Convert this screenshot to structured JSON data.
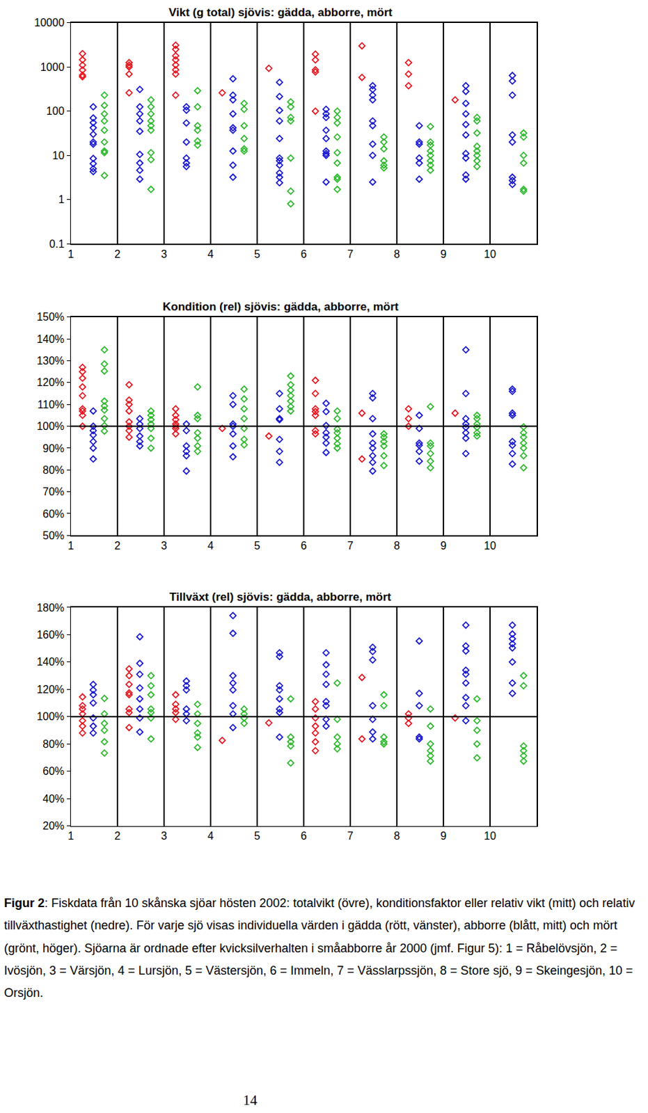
{
  "chart_data": [
    {
      "type": "scatter",
      "title": "Vikt (g total) sjövis: gädda, abborre, mört",
      "log": "y",
      "grid": "x",
      "x": [
        1,
        2,
        3,
        4,
        5,
        6,
        7,
        8,
        9,
        10
      ],
      "xlim": [
        1,
        11
      ],
      "xticks": [
        1,
        2,
        3,
        4,
        5,
        6,
        7,
        8,
        9,
        10
      ],
      "ylim": [
        0.1,
        10000
      ],
      "yticks": [
        0.1,
        1,
        10,
        100,
        1000,
        10000
      ],
      "series": [
        {
          "name": "gädda",
          "color": "#e8141e",
          "marker": "diamond-open",
          "values": [
            [
              2000,
              1450,
              1100,
              850,
              650,
              600
            ],
            [
              1250,
              1100,
              1000,
              690,
              260
            ],
            [
              3100,
              2500,
              1780,
              1440,
              1110,
              860,
              690,
              230
            ],
            [
              260
            ],
            [
              930
            ],
            [
              1950,
              1440,
              860,
              770,
              100
            ],
            [
              3000,
              580
            ],
            [
              1250,
              690,
              375
            ],
            [
              180
            ],
            []
          ]
        },
        {
          "name": "abborre",
          "color": "#1414d2",
          "marker": "diamond-open",
          "values": [
            [
              125,
              70,
              55,
              42,
              30,
              20,
              18,
              8.5,
              6.5,
              5,
              4.3
            ],
            [
              310,
              125,
              87,
              60,
              35,
              10.5,
              6.7,
              4.6,
              2.9
            ],
            [
              125,
              105,
              54,
              20,
              8.7,
              6.7,
              5.6
            ],
            [
              540,
              230,
              180,
              87,
              42,
              37,
              12.5,
              6,
              3.2
            ],
            [
              450,
              215,
              104,
              60,
              24,
              8.7,
              7.5,
              6,
              4,
              3.2,
              2.4
            ],
            [
              110,
              87,
              72,
              37,
              24,
              12.5,
              11,
              10,
              2.5
            ],
            [
              375,
              310,
              230,
              180,
              60,
              47,
              18,
              10,
              2.5
            ],
            [
              47,
              20,
              18,
              8.7,
              6.7,
              2.9
            ],
            [
              375,
              280,
              150,
              87,
              50,
              29,
              11,
              8.7,
              3.6,
              2.9
            ],
            [
              640,
              480,
              230,
              29,
              20,
              3.2,
              2.7,
              2.2
            ]
          ]
        },
        {
          "name": "mört",
          "color": "#2db82d",
          "marker": "diamond-open",
          "values": [
            [
              230,
              135,
              87,
              60,
              37,
              20,
              12.5,
              11.5,
              3.5
            ],
            [
              180,
              125,
              87,
              60,
              47,
              37,
              11.5,
              8,
              1.7
            ],
            [
              290,
              125,
              47,
              37,
              21,
              17
            ],
            [
              150,
              110,
              47,
              24,
              14,
              12.5
            ],
            [
              162,
              125,
              72,
              60,
              8.7,
              1.55,
              0.8
            ],
            [
              100,
              72,
              54,
              26,
              11.5,
              6.7,
              3.2,
              2.9,
              1.7
            ],
            [
              26,
              20,
              14,
              7.5,
              6,
              5.2
            ],
            [
              45,
              20,
              17,
              12.5,
              10,
              7.5,
              6,
              4.6
            ],
            [
              72,
              60,
              32,
              16,
              12.5,
              10,
              7.5,
              5.6
            ],
            [
              32,
              26,
              10,
              6.7,
              1.7,
              1.55
            ]
          ]
        }
      ]
    },
    {
      "type": "scatter",
      "title": "Kondition (rel) sjövis: gädda, abborre, mört",
      "grid": "x",
      "hline": 100,
      "x": [
        1,
        2,
        3,
        4,
        5,
        6,
        7,
        8,
        9,
        10
      ],
      "xlim": [
        1,
        11
      ],
      "xticks": [
        1,
        2,
        3,
        4,
        5,
        6,
        7,
        8,
        9,
        10
      ],
      "ylim": [
        50,
        150
      ],
      "yticks": [
        {
          "value": 50,
          "label": "50%"
        },
        {
          "value": 60,
          "label": "60%"
        },
        {
          "value": 70,
          "label": "70%"
        },
        {
          "value": 80,
          "label": "80%"
        },
        {
          "value": 90,
          "label": "90%"
        },
        {
          "value": 100,
          "label": "100%"
        },
        {
          "value": 110,
          "label": "110%"
        },
        {
          "value": 120,
          "label": "120%"
        },
        {
          "value": 130,
          "label": "130%"
        },
        {
          "value": 140,
          "label": "140%"
        },
        {
          "value": 150,
          "label": "150%"
        }
      ],
      "series": [
        {
          "name": "gädda",
          "color": "#e8141e",
          "marker": "diamond-open",
          "values": [
            [
              127,
              125,
              122,
              118,
              114,
              108,
              107,
              105,
              100
            ],
            [
              119,
              112,
              110,
              107,
              102,
              100,
              98,
              95
            ],
            [
              108,
              105,
              103,
              101,
              100,
              99,
              96.5
            ],
            [
              99
            ],
            [
              95.5
            ],
            [
              121,
              115,
              108,
              106.7,
              105,
              98,
              96.5
            ],
            [
              106,
              85
            ],
            [
              108,
              103.5,
              100
            ],
            [
              106
            ],
            []
          ]
        },
        {
          "name": "abborre",
          "color": "#1414d2",
          "marker": "diamond-open",
          "values": [
            [
              107,
              100,
              98,
              96,
              93,
              90,
              85
            ],
            [
              103.5,
              101,
              99,
              95.5,
              93,
              91
            ],
            [
              101,
              98,
              91,
              88.5,
              86.5,
              79.5
            ],
            [
              114,
              110,
              101,
              100,
              96.5,
              91,
              86
            ],
            [
              115,
              108,
              103.5,
              103,
              94,
              88.5,
              83.5
            ],
            [
              110.5,
              106.7,
              100.3,
              97,
              95,
              92.3,
              88
            ],
            [
              115,
              113,
              103.5,
              96.5,
              92.3,
              90,
              86.5,
              83.5,
              79.5
            ],
            [
              105,
              99,
              92.3,
              91.3,
              88.5,
              84
            ],
            [
              135,
              115,
              103.5,
              101,
              99.5,
              97,
              94.5,
              87.5
            ],
            [
              117,
              116,
              106,
              105,
              93,
              91.3,
              87.5,
              82.7
            ]
          ]
        },
        {
          "name": "mört",
          "color": "#2db82d",
          "marker": "diamond-open",
          "values": [
            [
              135,
              128.5,
              125.3,
              111.5,
              109.3,
              107.4,
              103.5,
              100.3,
              97.8
            ],
            [
              107,
              105,
              103,
              101,
              99,
              94.5,
              90
            ],
            [
              118,
              105,
              103.5,
              97,
              94.5,
              91,
              88.5
            ],
            [
              117,
              112.5,
              108,
              103.5,
              99,
              94,
              91.5
            ],
            [
              123,
              119,
              116.5,
              114,
              111.5,
              109,
              107
            ],
            [
              107,
              103.5,
              98.7,
              97,
              94.5,
              92,
              90
            ],
            [
              96.5,
              95,
              93,
              91,
              86.5,
              82
            ],
            [
              109,
              92.3,
              91,
              87.5,
              84,
              81
            ],
            [
              105,
              103.5,
              101,
              99.5,
              97,
              95.5
            ],
            [
              99.7,
              97,
              95,
              92.3,
              90,
              86.5,
              81
            ]
          ]
        }
      ]
    },
    {
      "type": "scatter",
      "title": "Tillväxt (rel) sjövis: gädda, abborre, mört",
      "grid": "x",
      "hline": 100,
      "x": [
        1,
        2,
        3,
        4,
        5,
        6,
        7,
        8,
        9,
        10
      ],
      "xlim": [
        1,
        11
      ],
      "xticks": [
        1,
        2,
        3,
        4,
        5,
        6,
        7,
        8,
        9,
        10
      ],
      "ylim": [
        20,
        180
      ],
      "yticks": [
        {
          "value": 20,
          "label": "20%"
        },
        {
          "value": 40,
          "label": "40%"
        },
        {
          "value": 60,
          "label": "60%"
        },
        {
          "value": 80,
          "label": "80%"
        },
        {
          "value": 100,
          "label": "100%"
        },
        {
          "value": 120,
          "label": "120%"
        },
        {
          "value": 140,
          "label": "140%"
        },
        {
          "value": 160,
          "label": "160%"
        },
        {
          "value": 180,
          "label": "180%"
        }
      ],
      "series": [
        {
          "name": "gädda",
          "color": "#e8141e",
          "marker": "diamond-open",
          "values": [
            [
              114.4,
              108,
              105.6,
              102,
              97,
              93,
              88
            ],
            [
              135,
              130,
              123.6,
              117.4,
              116,
              105.6,
              103,
              92
            ],
            [
              116,
              109,
              105.6,
              103,
              98
            ],
            [
              82.6
            ],
            [
              95.4
            ],
            [
              111,
              105.6,
              99,
              93,
              88,
              81.5,
              75
            ],
            [
              128.7,
              83.6
            ],
            [
              102,
              99,
              95
            ],
            [
              99
            ],
            []
          ]
        },
        {
          "name": "abborre",
          "color": "#1414d2",
          "marker": "diamond-open",
          "values": [
            [
              123.6,
              119.5,
              116,
              110,
              99,
              93,
              88
            ],
            [
              158.5,
              139,
              131,
              121,
              113,
              105.6,
              99,
              88.7
            ],
            [
              126,
              122.6,
              119.5,
              105.6,
              102,
              97
            ],
            [
              174,
              161,
              130,
              124.6,
              119.5,
              108,
              102,
              92
            ],
            [
              146.7,
              144,
              122.6,
              119.5,
              113,
              105.6,
              103,
              85
            ],
            [
              146.7,
              138,
              131,
              123.6,
              111,
              108,
              98,
              93
            ],
            [
              150.8,
              147.7,
              141.5,
              108,
              98,
              88.7,
              83.6
            ],
            [
              155.4,
              117,
              108,
              85,
              83.6
            ],
            [
              167,
              151.8,
              148,
              134,
              131,
              124.6,
              114,
              108,
              97
            ],
            [
              167,
              160.5,
              157,
              153.3,
              150.3,
              140,
              124.6,
              117
            ]
          ]
        },
        {
          "name": "mört",
          "color": "#2db82d",
          "marker": "diamond-open",
          "values": [
            [
              113.3,
              102,
              95,
              90,
              81.5,
              73.3
            ],
            [
              130,
              122.6,
              116,
              105.6,
              103,
              99,
              83.6
            ],
            [
              109,
              102,
              95,
              88,
              85,
              77.4
            ],
            [
              105.6,
              102,
              99,
              95
            ],
            [
              113,
              85,
              81.5,
              78.5,
              66
            ],
            [
              124.6,
              98,
              85,
              80,
              76.4
            ],
            [
              116,
              108,
              85,
              81.5,
              80
            ],
            [
              105.6,
              93,
              80,
              75,
              71.3,
              67.4
            ],
            [
              113,
              97,
              90,
              80,
              69.8
            ],
            [
              130,
              122.6,
              78.5,
              75,
              71.3,
              67.4
            ]
          ]
        }
      ]
    }
  ],
  "caption": {
    "label": "Figur 2",
    "text": ": Fiskdata från 10 skånska sjöar hösten 2002: totalvikt (övre), konditionsfaktor eller relativ vikt (mitt) och relativ tillväxthastighet (nedre). För varje sjö visas individuella värden i gädda (rött, vänster), abborre (blått, mitt) och mört (grönt, höger). Sjöarna är ordnade efter kvicksilverhalten i småabborre år 2000 (jmf. Figur 5): 1 = Råbelövsjön, 2 = Ivösjön, 3 = Värsjön, 4 = Lursjön, 5 = Västersjön, 6 = Immeln, 7 = Vässlarpssjön, 8 = Store sjö, 9 = Skeingesjön, 10 = Orsjön."
  },
  "page_number": "14"
}
